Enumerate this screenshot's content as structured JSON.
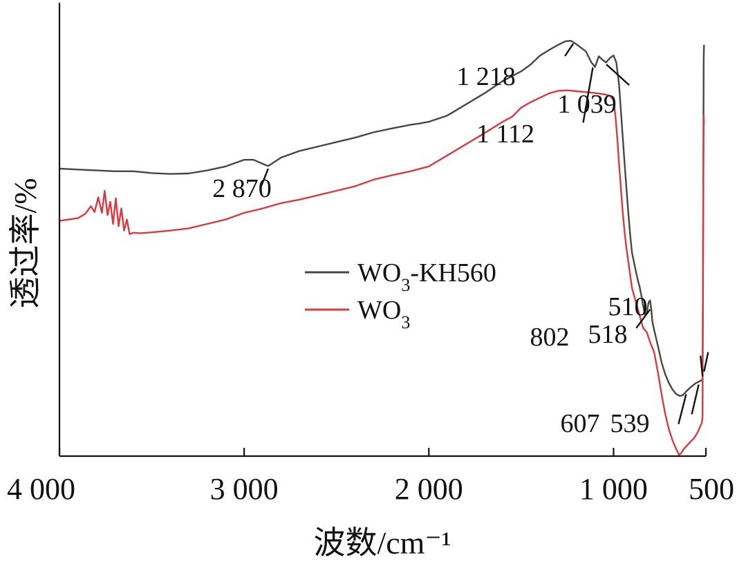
{
  "chart_data": {
    "type": "line",
    "xlabel": "波数/cm⁻¹",
    "ylabel": "透过率/%",
    "xlim": [
      4000,
      500
    ],
    "ylim": [
      0,
      100
    ],
    "x_reversed": true,
    "xticks": [
      {
        "value": 4000,
        "label": "4 000"
      },
      {
        "value": 3000,
        "label": "3 000"
      },
      {
        "value": 2000,
        "label": "2 000"
      },
      {
        "value": 1000,
        "label": "1 000"
      },
      {
        "value": 500,
        "label": "500"
      }
    ],
    "legend": {
      "placement": "center",
      "entries": [
        {
          "series": 0,
          "base": "WO",
          "sub": "3",
          "suffix": "-KH560"
        },
        {
          "series": 1,
          "base": "WO",
          "sub": "3",
          "suffix": ""
        }
      ]
    },
    "series": [
      {
        "name": "WO3-KH560",
        "color": "#4d4440",
        "points": [
          [
            4000,
            65.0
          ],
          [
            3900,
            64.8
          ],
          [
            3800,
            64.6
          ],
          [
            3700,
            64.4
          ],
          [
            3600,
            64.4
          ],
          [
            3500,
            64.0
          ],
          [
            3400,
            63.8
          ],
          [
            3300,
            63.9
          ],
          [
            3200,
            64.6
          ],
          [
            3100,
            65.5
          ],
          [
            3000,
            67.0
          ],
          [
            2950,
            67.0
          ],
          [
            2900,
            66.1
          ],
          [
            2870,
            65.6
          ],
          [
            2840,
            66.4
          ],
          [
            2800,
            67.5
          ],
          [
            2700,
            69.0
          ],
          [
            2600,
            70.0
          ],
          [
            2500,
            71.0
          ],
          [
            2400,
            72.0
          ],
          [
            2300,
            73.2
          ],
          [
            2200,
            74.1
          ],
          [
            2100,
            74.9
          ],
          [
            2050,
            75.2
          ],
          [
            2000,
            75.6
          ],
          [
            1900,
            77.0
          ],
          [
            1800,
            79.5
          ],
          [
            1700,
            82.0
          ],
          [
            1600,
            84.8
          ],
          [
            1500,
            87.0
          ],
          [
            1450,
            88.5
          ],
          [
            1400,
            90.5
          ],
          [
            1350,
            91.8
          ],
          [
            1300,
            93.0
          ],
          [
            1260,
            93.8
          ],
          [
            1230,
            93.9
          ],
          [
            1200,
            93.1
          ],
          [
            1150,
            91.5
          ],
          [
            1120,
            89.0
          ],
          [
            1100,
            88.0
          ],
          [
            1080,
            90.4
          ],
          [
            1060,
            89.6
          ],
          [
            1040,
            89.0
          ],
          [
            1020,
            90.0
          ],
          [
            1000,
            90.6
          ],
          [
            985,
            89.0
          ],
          [
            970,
            84.0
          ],
          [
            960,
            78.0
          ],
          [
            950,
            72.0
          ],
          [
            940,
            66.0
          ],
          [
            930,
            60.5
          ],
          [
            920,
            55.0
          ],
          [
            910,
            50.0
          ],
          [
            900,
            46.0
          ],
          [
            880,
            42.0
          ],
          [
            870,
            40.0
          ],
          [
            860,
            38.5
          ],
          [
            850,
            36.5
          ],
          [
            840,
            34.0
          ],
          [
            830,
            32.0
          ],
          [
            820,
            32.5
          ],
          [
            810,
            34.8
          ],
          [
            802,
            35.2
          ],
          [
            795,
            33.0
          ],
          [
            790,
            30.5
          ],
          [
            780,
            28.5
          ],
          [
            760,
            25.0
          ],
          [
            740,
            21.2
          ],
          [
            720,
            18.5
          ],
          [
            700,
            16.5
          ],
          [
            680,
            15.0
          ],
          [
            660,
            14.0
          ],
          [
            640,
            13.6
          ],
          [
            625,
            13.8
          ],
          [
            615,
            14.2
          ],
          [
            607,
            14.6
          ],
          [
            590,
            15.3
          ],
          [
            570,
            16.0
          ],
          [
            555,
            16.5
          ],
          [
            540,
            16.8
          ],
          [
            530,
            17.0
          ],
          [
            522,
            17.2
          ],
          [
            518,
            17.4
          ],
          [
            515,
            50.0
          ],
          [
            512,
            90.0
          ],
          [
            510,
            93.0
          ]
        ]
      },
      {
        "name": "WO3",
        "color": "#d9393f",
        "points": [
          [
            4000,
            53.2
          ],
          [
            3900,
            53.8
          ],
          [
            3860,
            54.8
          ],
          [
            3830,
            56.5
          ],
          [
            3810,
            55.2
          ],
          [
            3790,
            58.5
          ],
          [
            3770,
            55.0
          ],
          [
            3755,
            60.0
          ],
          [
            3740,
            54.5
          ],
          [
            3725,
            57.5
          ],
          [
            3710,
            52.5
          ],
          [
            3695,
            58.3
          ],
          [
            3680,
            52.0
          ],
          [
            3665,
            56.0
          ],
          [
            3650,
            51.0
          ],
          [
            3635,
            53.5
          ],
          [
            3620,
            50.2
          ],
          [
            3600,
            50.5
          ],
          [
            3560,
            50.4
          ],
          [
            3500,
            50.6
          ],
          [
            3400,
            51.0
          ],
          [
            3300,
            51.5
          ],
          [
            3200,
            52.5
          ],
          [
            3100,
            53.5
          ],
          [
            3000,
            55.0
          ],
          [
            2900,
            56.0
          ],
          [
            2800,
            57.2
          ],
          [
            2700,
            58.0
          ],
          [
            2600,
            59.0
          ],
          [
            2500,
            60.0
          ],
          [
            2400,
            61.0
          ],
          [
            2300,
            62.5
          ],
          [
            2200,
            63.5
          ],
          [
            2100,
            64.4
          ],
          [
            2000,
            65.5
          ],
          [
            1900,
            68.0
          ],
          [
            1800,
            70.5
          ],
          [
            1700,
            73.0
          ],
          [
            1600,
            75.6
          ],
          [
            1550,
            76.7
          ],
          [
            1500,
            78.8
          ],
          [
            1450,
            80.0
          ],
          [
            1400,
            81.0
          ],
          [
            1350,
            82.0
          ],
          [
            1300,
            82.6
          ],
          [
            1250,
            82.7
          ],
          [
            1200,
            82.5
          ],
          [
            1150,
            82.3
          ],
          [
            1100,
            82.1
          ],
          [
            1050,
            81.8
          ],
          [
            1020,
            81.5
          ],
          [
            1000,
            80.5
          ],
          [
            990,
            77.0
          ],
          [
            980,
            72.0
          ],
          [
            970,
            66.0
          ],
          [
            960,
            60.5
          ],
          [
            950,
            55.0
          ],
          [
            940,
            50.5
          ],
          [
            930,
            47.0
          ],
          [
            920,
            44.0
          ],
          [
            900,
            38.0
          ],
          [
            880,
            35.0
          ],
          [
            860,
            32.0
          ],
          [
            840,
            29.0
          ],
          [
            820,
            28.0
          ],
          [
            800,
            25.5
          ],
          [
            780,
            23.5
          ],
          [
            760,
            19.0
          ],
          [
            740,
            14.0
          ],
          [
            720,
            9.5
          ],
          [
            700,
            6.0
          ],
          [
            680,
            3.5
          ],
          [
            660,
            1.5
          ],
          [
            645,
            0.3
          ],
          [
            635,
            0.6
          ],
          [
            620,
            1.6
          ],
          [
            600,
            2.5
          ],
          [
            580,
            3.4
          ],
          [
            565,
            4.0
          ],
          [
            550,
            5.0
          ],
          [
            540,
            5.8
          ],
          [
            530,
            6.8
          ],
          [
            522,
            7.5
          ],
          [
            518,
            9.0
          ],
          [
            516,
            35.0
          ],
          [
            514,
            62.0
          ],
          [
            512,
            77.0
          ],
          [
            510,
            75.0
          ]
        ]
      }
    ],
    "annotations": [
      {
        "label": "2 870",
        "x": 2870,
        "y": 65.6
      },
      {
        "label": "1 218",
        "x": 1218,
        "y": 93.9
      },
      {
        "label": "1 112",
        "x": 1112,
        "y": 88.5
      },
      {
        "label": "1 039",
        "x": 1039,
        "y": 89.2
      },
      {
        "label": "802",
        "x": 802,
        "y": 33.8
      },
      {
        "label": "607",
        "x": 607,
        "y": 14.6
      },
      {
        "label": "539",
        "x": 539,
        "y": 16.8
      },
      {
        "label": "518",
        "x": 518,
        "y": 17.4
      },
      {
        "label": "510",
        "x": 510,
        "y": 18.5
      }
    ]
  }
}
